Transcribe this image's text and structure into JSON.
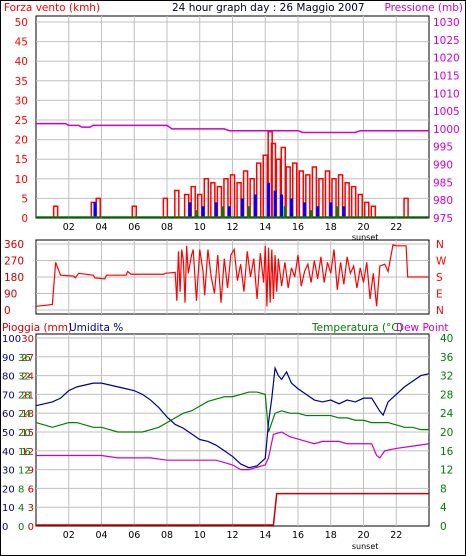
{
  "header": {
    "left_title": "Forza vento (kmh)",
    "center_title": "24 hour graph day : 26 Maggio 2007",
    "right_title": "Pressione (mb)"
  },
  "lower_header": {
    "rain_label": "Pioggia (mm)",
    "humidity_label": "Umidita %",
    "temp_label": "Temperatura (°C)",
    "dew_label": "Dew Point"
  },
  "sunset_label": "sunset",
  "colors": {
    "red": "#ff0000",
    "blue": "#0000ff",
    "green": "#008000",
    "magenta": "#cc00cc",
    "darkblue": "#00008b",
    "darkred": "#cc0000",
    "grid": "#c0c0c0"
  },
  "chart_data": [
    {
      "type": "bar",
      "name": "wind_pressure",
      "x_ticks": [
        "02",
        "04",
        "06",
        "08",
        "10",
        "12",
        "14",
        "16",
        "18",
        "20",
        "22"
      ],
      "y_left_ticks": [
        "0",
        "5",
        "10",
        "15",
        "20",
        "25",
        "30",
        "35",
        "40",
        "45",
        "50"
      ],
      "y_right_ticks": [
        "975",
        "980",
        "985",
        "990",
        "995",
        "1000",
        "1005",
        "1010",
        "1015",
        "1020",
        "1025",
        "1030"
      ],
      "ylim_left": [
        0,
        50
      ],
      "ylim_right": [
        975,
        1030
      ],
      "wind_gust_bars": [
        [
          1.2,
          3
        ],
        [
          3.5,
          4
        ],
        [
          3.8,
          5
        ],
        [
          6.0,
          3
        ],
        [
          7.9,
          5
        ],
        [
          8.6,
          7
        ],
        [
          9.2,
          6
        ],
        [
          9.6,
          8
        ],
        [
          10.0,
          6
        ],
        [
          10.4,
          10
        ],
        [
          10.8,
          9
        ],
        [
          11.2,
          8
        ],
        [
          11.6,
          10
        ],
        [
          12.0,
          11
        ],
        [
          12.4,
          9
        ],
        [
          12.8,
          12
        ],
        [
          13.2,
          10
        ],
        [
          13.6,
          14
        ],
        [
          14.0,
          16
        ],
        [
          14.3,
          22
        ],
        [
          14.5,
          19
        ],
        [
          14.8,
          15
        ],
        [
          15.1,
          18
        ],
        [
          15.4,
          13
        ],
        [
          15.8,
          14
        ],
        [
          16.2,
          12
        ],
        [
          16.6,
          11
        ],
        [
          17.0,
          13
        ],
        [
          17.4,
          10
        ],
        [
          17.8,
          12
        ],
        [
          18.2,
          10
        ],
        [
          18.6,
          11
        ],
        [
          19.0,
          9
        ],
        [
          19.4,
          8
        ],
        [
          19.8,
          6
        ],
        [
          20.2,
          4
        ],
        [
          20.6,
          3
        ],
        [
          22.6,
          5
        ]
      ],
      "wind_avg_bars": [
        [
          3.6,
          4
        ],
        [
          9.4,
          4
        ],
        [
          10.2,
          3
        ],
        [
          11.0,
          4
        ],
        [
          11.8,
          3
        ],
        [
          12.6,
          5
        ],
        [
          13.4,
          6
        ],
        [
          14.2,
          9
        ],
        [
          14.6,
          7
        ],
        [
          15.0,
          6
        ],
        [
          15.6,
          5
        ],
        [
          16.4,
          4
        ],
        [
          17.2,
          3
        ],
        [
          18.0,
          4
        ],
        [
          18.8,
          3
        ]
      ],
      "wind_green_bars": [
        [
          9.8,
          2
        ],
        [
          11.4,
          3
        ],
        [
          13.0,
          3
        ],
        [
          15.2,
          3
        ],
        [
          16.8,
          2
        ],
        [
          18.4,
          3
        ]
      ],
      "pressure": [
        [
          0,
          1001.5
        ],
        [
          1.8,
          1001.5
        ],
        [
          2.0,
          1001
        ],
        [
          2.6,
          1001
        ],
        [
          2.8,
          1000.5
        ],
        [
          3.3,
          1000.5
        ],
        [
          3.5,
          1001
        ],
        [
          8.0,
          1001
        ],
        [
          8.3,
          1000
        ],
        [
          11.5,
          1000
        ],
        [
          11.8,
          999.5
        ],
        [
          16.0,
          999.5
        ],
        [
          16.3,
          999
        ],
        [
          19.5,
          999
        ],
        [
          19.8,
          999.5
        ],
        [
          24,
          999.5
        ]
      ]
    },
    {
      "type": "line",
      "name": "wind_direction",
      "y_ticks": [
        "0",
        "90",
        "180",
        "270",
        "360"
      ],
      "y_right_labels": [
        "N",
        "W",
        "S",
        "E",
        "N"
      ],
      "ylim": [
        0,
        360
      ],
      "points": [
        [
          0.0,
          20
        ],
        [
          0.5,
          25
        ],
        [
          1.0,
          30
        ],
        [
          1.2,
          260
        ],
        [
          1.5,
          190
        ],
        [
          2.3,
          185
        ],
        [
          2.4,
          175
        ],
        [
          2.6,
          200
        ],
        [
          3.5,
          190
        ],
        [
          3.6,
          175
        ],
        [
          4.2,
          170
        ],
        [
          4.3,
          190
        ],
        [
          5.5,
          190
        ],
        [
          5.6,
          210
        ],
        [
          5.8,
          195
        ],
        [
          7.8,
          195
        ],
        [
          7.9,
          200
        ],
        [
          8.5,
          205
        ],
        [
          8.6,
          50
        ],
        [
          8.7,
          320
        ],
        [
          8.8,
          100
        ],
        [
          8.9,
          330
        ],
        [
          9.0,
          270
        ],
        [
          9.1,
          40
        ],
        [
          9.2,
          350
        ],
        [
          9.3,
          200
        ],
        [
          9.5,
          300
        ],
        [
          9.6,
          330
        ],
        [
          9.8,
          50
        ],
        [
          10.0,
          330
        ],
        [
          10.2,
          210
        ],
        [
          10.3,
          80
        ],
        [
          10.5,
          330
        ],
        [
          10.7,
          180
        ],
        [
          10.9,
          90
        ],
        [
          11.1,
          300
        ],
        [
          11.3,
          40
        ],
        [
          11.5,
          280
        ],
        [
          11.7,
          120
        ],
        [
          11.9,
          300
        ],
        [
          12.1,
          330
        ],
        [
          12.3,
          160
        ],
        [
          12.5,
          250
        ],
        [
          12.7,
          100
        ],
        [
          12.9,
          320
        ],
        [
          13.1,
          180
        ],
        [
          13.3,
          280
        ],
        [
          13.5,
          60
        ],
        [
          13.7,
          310
        ],
        [
          13.9,
          150
        ],
        [
          14.0,
          350
        ],
        [
          14.1,
          20
        ],
        [
          14.2,
          340
        ],
        [
          14.3,
          40
        ],
        [
          14.4,
          330
        ],
        [
          14.5,
          60
        ],
        [
          14.6,
          300
        ],
        [
          14.7,
          100
        ],
        [
          14.8,
          280
        ],
        [
          15.0,
          130
        ],
        [
          15.2,
          260
        ],
        [
          15.4,
          120
        ],
        [
          15.6,
          230
        ],
        [
          15.8,
          180
        ],
        [
          16.0,
          300
        ],
        [
          16.2,
          130
        ],
        [
          16.4,
          210
        ],
        [
          16.6,
          250
        ],
        [
          16.8,
          150
        ],
        [
          17.0,
          270
        ],
        [
          17.2,
          170
        ],
        [
          17.4,
          290
        ],
        [
          17.6,
          150
        ],
        [
          17.8,
          260
        ],
        [
          18.0,
          200
        ],
        [
          18.2,
          330
        ],
        [
          18.4,
          110
        ],
        [
          18.6,
          260
        ],
        [
          18.8,
          140
        ],
        [
          19.0,
          290
        ],
        [
          19.2,
          200
        ],
        [
          19.4,
          240
        ],
        [
          19.6,
          120
        ],
        [
          19.8,
          230
        ],
        [
          20.0,
          150
        ],
        [
          20.2,
          260
        ],
        [
          20.4,
          60
        ],
        [
          20.6,
          200
        ],
        [
          20.8,
          20
        ],
        [
          21.0,
          240
        ],
        [
          21.3,
          250
        ],
        [
          21.5,
          210
        ],
        [
          21.8,
          355
        ],
        [
          22.0,
          350
        ],
        [
          22.6,
          350
        ],
        [
          22.7,
          180
        ],
        [
          24,
          180
        ]
      ]
    },
    {
      "type": "line",
      "name": "rain_humidity_temperature",
      "y_rain_ticks": [
        "0",
        "3",
        "6",
        "9",
        "12",
        "15",
        "18",
        "21",
        "24",
        "27",
        "30"
      ],
      "y_humidity_ticks": [
        "0",
        "10",
        "20",
        "30",
        "40",
        "50",
        "60",
        "70",
        "80",
        "90",
        "100"
      ],
      "y_temp_left_ticks": [
        "0",
        "4",
        "8",
        "12",
        "16",
        "20",
        "24",
        "28",
        "32",
        "36"
      ],
      "y_temp_right_ticks": [
        "0",
        "4",
        "8",
        "12",
        "16",
        "20",
        "24",
        "28",
        "32",
        "36",
        "40"
      ],
      "ylim_rain": [
        0,
        30
      ],
      "ylim_temp": [
        0,
        40
      ],
      "humidity": [
        [
          0,
          64
        ],
        [
          0.5,
          65
        ],
        [
          1.0,
          66
        ],
        [
          1.5,
          68
        ],
        [
          2.0,
          72
        ],
        [
          2.5,
          74
        ],
        [
          3.0,
          75
        ],
        [
          3.5,
          76
        ],
        [
          4.0,
          76
        ],
        [
          4.5,
          75
        ],
        [
          5.0,
          74
        ],
        [
          5.5,
          73
        ],
        [
          6.0,
          72
        ],
        [
          6.5,
          70
        ],
        [
          7.0,
          67
        ],
        [
          7.5,
          63
        ],
        [
          8.0,
          58
        ],
        [
          8.5,
          54
        ],
        [
          9.0,
          52
        ],
        [
          9.5,
          49
        ],
        [
          10.0,
          46
        ],
        [
          10.5,
          45
        ],
        [
          11.0,
          43
        ],
        [
          11.5,
          40
        ],
        [
          12.0,
          37
        ],
        [
          12.5,
          33
        ],
        [
          13.0,
          31
        ],
        [
          13.5,
          32
        ],
        [
          14.0,
          36
        ],
        [
          14.2,
          55
        ],
        [
          14.4,
          68
        ],
        [
          14.6,
          84
        ],
        [
          14.8,
          80
        ],
        [
          15.0,
          78
        ],
        [
          15.3,
          82
        ],
        [
          15.6,
          76
        ],
        [
          16.0,
          73
        ],
        [
          16.5,
          70
        ],
        [
          17.0,
          67
        ],
        [
          17.5,
          66
        ],
        [
          18.0,
          67
        ],
        [
          18.5,
          65
        ],
        [
          19.0,
          67
        ],
        [
          19.5,
          66
        ],
        [
          20.0,
          68
        ],
        [
          20.5,
          68
        ],
        [
          21.0,
          61
        ],
        [
          21.2,
          59
        ],
        [
          21.5,
          66
        ],
        [
          22.0,
          70
        ],
        [
          22.5,
          74
        ],
        [
          23.0,
          77
        ],
        [
          23.5,
          80
        ],
        [
          24,
          81
        ]
      ],
      "temperature": [
        [
          0,
          22
        ],
        [
          0.5,
          21.5
        ],
        [
          1.0,
          21
        ],
        [
          1.5,
          21.5
        ],
        [
          2.0,
          22
        ],
        [
          2.5,
          22
        ],
        [
          3.0,
          21.5
        ],
        [
          3.5,
          21
        ],
        [
          4.0,
          21
        ],
        [
          4.5,
          20.5
        ],
        [
          5.0,
          20
        ],
        [
          5.5,
          20
        ],
        [
          6.0,
          20
        ],
        [
          6.5,
          20
        ],
        [
          7.0,
          20.5
        ],
        [
          7.5,
          21
        ],
        [
          8.0,
          22
        ],
        [
          8.5,
          23
        ],
        [
          9.0,
          24
        ],
        [
          9.5,
          24.5
        ],
        [
          10.0,
          25.5
        ],
        [
          10.5,
          26.5
        ],
        [
          11.0,
          27
        ],
        [
          11.5,
          27.5
        ],
        [
          12.0,
          27.5
        ],
        [
          12.5,
          28
        ],
        [
          13.0,
          28.5
        ],
        [
          13.5,
          28.5
        ],
        [
          14.0,
          28
        ],
        [
          14.2,
          20
        ],
        [
          14.4,
          22
        ],
        [
          14.6,
          24
        ],
        [
          15.0,
          24.5
        ],
        [
          15.5,
          24
        ],
        [
          16.0,
          24
        ],
        [
          16.5,
          23.5
        ],
        [
          17.0,
          23.5
        ],
        [
          17.5,
          23.5
        ],
        [
          18.0,
          23.5
        ],
        [
          18.5,
          23
        ],
        [
          19.0,
          23
        ],
        [
          19.5,
          22.5
        ],
        [
          20.0,
          22.5
        ],
        [
          20.5,
          22
        ],
        [
          21.0,
          22
        ],
        [
          21.5,
          22
        ],
        [
          22.0,
          21.5
        ],
        [
          22.5,
          21
        ],
        [
          23.0,
          21
        ],
        [
          23.5,
          20.5
        ],
        [
          24,
          20.5
        ]
      ],
      "dew_point": [
        [
          0,
          15
        ],
        [
          1,
          15
        ],
        [
          2,
          15
        ],
        [
          3,
          15
        ],
        [
          4,
          15
        ],
        [
          5,
          14.5
        ],
        [
          6,
          14.5
        ],
        [
          7,
          14.5
        ],
        [
          8,
          14
        ],
        [
          9,
          14
        ],
        [
          10,
          14
        ],
        [
          11,
          14
        ],
        [
          11.5,
          13.5
        ],
        [
          12,
          13
        ],
        [
          12.5,
          12
        ],
        [
          13,
          12
        ],
        [
          13.5,
          12.5
        ],
        [
          14,
          13
        ],
        [
          14.2,
          14.5
        ],
        [
          14.5,
          19.5
        ],
        [
          15,
          20
        ],
        [
          15.5,
          19
        ],
        [
          16,
          18.5
        ],
        [
          16.5,
          18
        ],
        [
          17,
          17.5
        ],
        [
          17.5,
          18
        ],
        [
          18,
          18
        ],
        [
          18.5,
          18
        ],
        [
          19,
          17.5
        ],
        [
          19.5,
          17.5
        ],
        [
          20,
          17.5
        ],
        [
          20.5,
          17.5
        ],
        [
          20.8,
          15
        ],
        [
          21,
          14.5
        ],
        [
          21.3,
          16
        ],
        [
          22,
          16.5
        ],
        [
          23,
          17
        ],
        [
          24,
          17.5
        ]
      ],
      "rain": [
        [
          0,
          0
        ],
        [
          14.5,
          0
        ],
        [
          14.7,
          5
        ],
        [
          24,
          5
        ]
      ]
    }
  ]
}
